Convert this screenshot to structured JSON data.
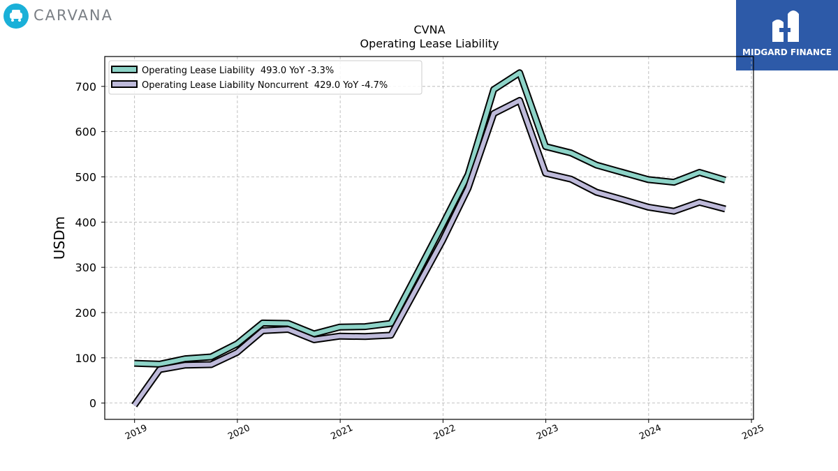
{
  "branding": {
    "company_logo_text": "CARVANA",
    "watermark_text": "MIDGARD FINANCE"
  },
  "colors": {
    "series_1": "#8dd3c7",
    "series_2": "#bebada",
    "outline": "#000000",
    "badge_bg": "#2d5aa8",
    "logo_circle": "#1ab0d8"
  },
  "chart_data": {
    "type": "line",
    "title": "CVNA",
    "subtitle": "Operating Lease Liability",
    "ylabel": "USDm",
    "xlabel": "",
    "ylim": [
      -36,
      766
    ],
    "xlim": [
      2018.71,
      2025.02
    ],
    "yticks": [
      0,
      100,
      200,
      300,
      400,
      500,
      600,
      700
    ],
    "xticks": [
      2019,
      2020,
      2021,
      2022,
      2023,
      2024,
      2025
    ],
    "grid": true,
    "legend_position": "top-left",
    "series": [
      {
        "name": "Operating Lease Liability",
        "legend": "Operating Lease Liability  493.0 YoY -3.3%",
        "color": "#8dd3c7",
        "x": [
          "2018-12-31",
          "2019-03-31",
          "2019-06-30",
          "2019-09-30",
          "2019-12-31",
          "2020-03-31",
          "2020-06-30",
          "2020-09-30",
          "2020-12-31",
          "2021-03-31",
          "2021-06-30",
          "2021-09-30",
          "2021-12-31",
          "2022-03-31",
          "2022-06-30",
          "2022-09-30",
          "2022-12-31",
          "2023-03-31",
          "2023-06-30",
          "2023-09-30",
          "2023-12-31",
          "2024-03-31",
          "2024-06-30",
          "2024-09-30"
        ],
        "values": [
          88,
          86,
          98,
          102,
          131,
          177,
          176,
          153,
          168,
          169,
          176,
          285,
          395,
          505,
          693,
          730,
          567,
          553,
          526,
          510,
          494,
          488,
          510,
          493
        ]
      },
      {
        "name": "Operating Lease Liability Noncurrent",
        "legend": "Operating Lease Liability Noncurrent  429.0 YoY -4.7%",
        "color": "#bebada",
        "x": [
          "2018-12-31",
          "2019-03-31",
          "2019-06-30",
          "2019-09-30",
          "2019-12-31",
          "2020-03-31",
          "2020-06-30",
          "2020-09-30",
          "2020-12-31",
          "2021-03-31",
          "2021-06-30",
          "2021-09-30",
          "2021-12-31",
          "2022-03-31",
          "2022-06-30",
          "2022-09-30",
          "2022-12-31",
          "2023-03-31",
          "2023-06-30",
          "2023-09-30",
          "2023-12-31",
          "2024-03-31",
          "2024-06-30",
          "2024-09-30"
        ],
        "values": [
          -5,
          74,
          84,
          85,
          112,
          160,
          163,
          140,
          148,
          147,
          150,
          255,
          360,
          475,
          640,
          669,
          508,
          495,
          466,
          450,
          433,
          424,
          444,
          429
        ]
      }
    ]
  }
}
